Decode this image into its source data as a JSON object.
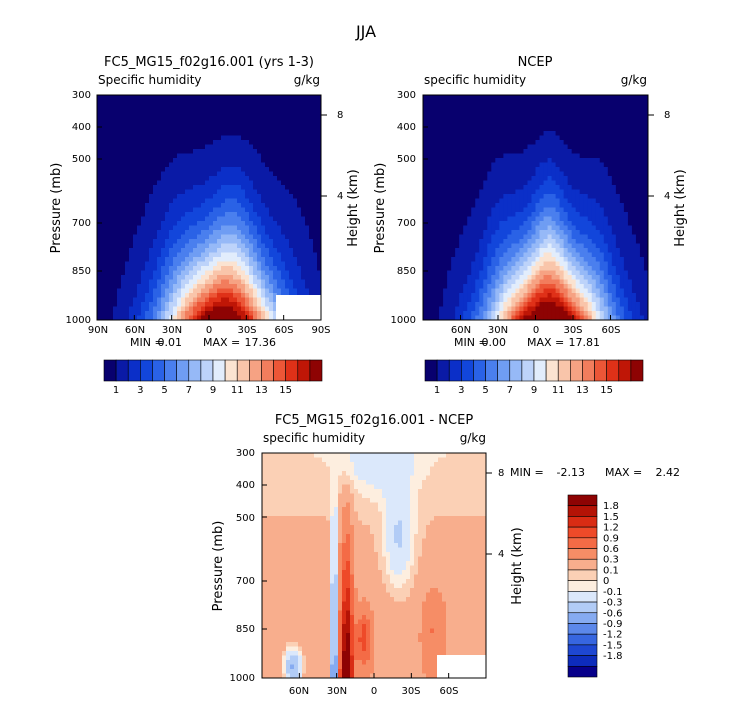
{
  "figure": {
    "title": "JJA"
  },
  "chart_data": [
    {
      "type": "heatmap",
      "id": "model",
      "title": "FC5_MG15_f02g16.001 (yrs 1-3)",
      "subtitle": "Specific humidity",
      "units": "g/kg",
      "ylabel": "Pressure (mb)",
      "y2label": "Height (km)",
      "x_ticks": [
        "90N",
        "60N",
        "30N",
        "0",
        "30S",
        "60S",
        "90S"
      ],
      "y_ticks": [
        "300",
        "400",
        "500",
        "700",
        "850",
        "1000"
      ],
      "y2_ticks": [
        "8",
        "4"
      ],
      "stats": {
        "min_label": "MIN =",
        "min": "0.01",
        "max_label": "MAX =",
        "max": "17.36"
      },
      "field": {
        "peak_lat": -10,
        "peak_value": 17.36,
        "min_value": 0.01
      }
    },
    {
      "type": "heatmap",
      "id": "obs",
      "title": "NCEP",
      "subtitle": "specific humidity",
      "units": "g/kg",
      "ylabel": "Pressure (mb)",
      "y2label": "Height (km)",
      "x_ticks": [
        "60N",
        "30N",
        "0",
        "30S",
        "60S"
      ],
      "y_ticks": [
        "300",
        "400",
        "500",
        "700",
        "850",
        "1000"
      ],
      "y2_ticks": [
        "8",
        "4"
      ],
      "stats": {
        "min_label": "MIN =",
        "min": "0.00",
        "max_label": "MAX =",
        "max": "17.81"
      },
      "field": {
        "peak_lat": -10,
        "peak_value": 17.81,
        "min_value": 0.0
      }
    },
    {
      "type": "heatmap",
      "id": "diff",
      "title": "FC5_MG15_f02g16.001 - NCEP",
      "subtitle": "specific humidity",
      "units": "g/kg",
      "ylabel": "Pressure (mb)",
      "y2label": "Height (km)",
      "x_ticks": [
        "60N",
        "30N",
        "0",
        "30S",
        "60S"
      ],
      "y_ticks": [
        "300",
        "400",
        "500",
        "700",
        "850",
        "1000"
      ],
      "y2_ticks": [
        "8",
        "4"
      ],
      "stats": {
        "min_label": "MIN =",
        "min": "-2.13",
        "max_label": "MAX =",
        "max": "2.42"
      }
    }
  ],
  "colorbar_abs": {
    "labels": [
      "1",
      "3",
      "5",
      "7",
      "9",
      "11",
      "13",
      "15"
    ],
    "colors": [
      "#08006e",
      "#0a1aa6",
      "#0b2fc8",
      "#1246db",
      "#2a62e6",
      "#4a7fee",
      "#6f9df3",
      "#96b9f7",
      "#bdd3fa",
      "#e2edfc",
      "#fbe3d1",
      "#f9c5aa",
      "#f6a283",
      "#f27d5d",
      "#ec5637",
      "#df3118",
      "#bf1606",
      "#8e0303"
    ]
  },
  "colorbar_diff": {
    "labels": [
      "1.8",
      "1.5",
      "1.2",
      "0.9",
      "0.6",
      "0.3",
      "0.1",
      "0",
      "-0.1",
      "-0.3",
      "-0.6",
      "-0.9",
      "-1.2",
      "-1.5",
      "-1.8"
    ],
    "colors": [
      "#8e0303",
      "#b41306",
      "#d92c14",
      "#ee4a29",
      "#f46b46",
      "#f68d66",
      "#f8ae8d",
      "#fbd0b5",
      "#fdeedf",
      "#dbe8fb",
      "#b2ccf6",
      "#86abf1",
      "#5c88ea",
      "#3766e0",
      "#1e47d2",
      "#0d2cbc",
      "#07008a"
    ]
  }
}
